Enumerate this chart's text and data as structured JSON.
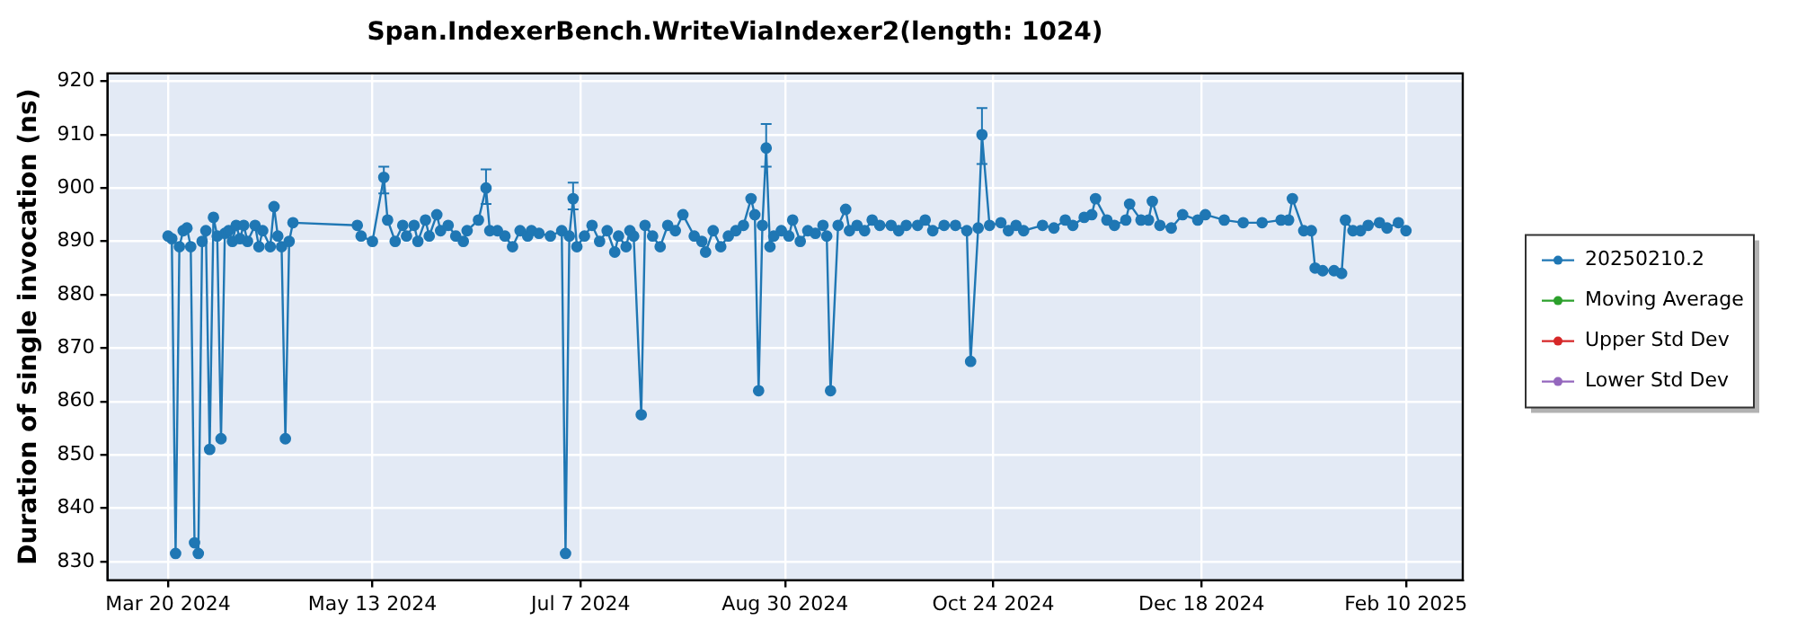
{
  "chart_data": {
    "type": "line",
    "title": "Span.IndexerBench.WriteViaIndexer2(length: 1024)",
    "ylabel": "Duration of single invocation (ns)",
    "xlim": [
      "2024-03-04",
      "2025-02-25"
    ],
    "xticks": [
      {
        "value": "2024-03-20",
        "label": "Mar 20 2024"
      },
      {
        "value": "2024-05-13",
        "label": "May 13 2024"
      },
      {
        "value": "2024-07-07",
        "label": "Jul 7 2024"
      },
      {
        "value": "2024-08-30",
        "label": "Aug 30 2024"
      },
      {
        "value": "2024-10-24",
        "label": "Oct 24 2024"
      },
      {
        "value": "2024-12-18",
        "label": "Dec 18 2024"
      },
      {
        "value": "2025-02-10",
        "label": "Feb 10 2025"
      }
    ],
    "ylim": [
      826.5,
      921.5
    ],
    "yticks": [
      830,
      840,
      850,
      860,
      870,
      880,
      890,
      900,
      910,
      920
    ],
    "grid": true,
    "legend": "right",
    "marker": "circle",
    "line_style": "solid",
    "series": [
      {
        "name": "20250210.2",
        "color": "#1f77b4",
        "x": [
          "2024-03-20",
          "2024-03-21",
          "2024-03-22",
          "2024-03-23",
          "2024-03-24",
          "2024-03-25",
          "2024-03-26",
          "2024-03-27",
          "2024-03-28",
          "2024-03-29",
          "2024-03-30",
          "2024-03-31",
          "2024-04-01",
          "2024-04-02",
          "2024-04-03",
          "2024-04-04",
          "2024-04-05",
          "2024-04-06",
          "2024-04-07",
          "2024-04-08",
          "2024-04-09",
          "2024-04-10",
          "2024-04-12",
          "2024-04-13",
          "2024-04-14",
          "2024-04-16",
          "2024-04-17",
          "2024-04-18",
          "2024-04-19",
          "2024-04-20",
          "2024-04-21",
          "2024-04-22",
          "2024-05-09",
          "2024-05-10",
          "2024-05-13",
          "2024-05-16",
          "2024-05-17",
          "2024-05-19",
          "2024-05-21",
          "2024-05-22",
          "2024-05-24",
          "2024-05-25",
          "2024-05-27",
          "2024-05-28",
          "2024-05-30",
          "2024-05-31",
          "2024-06-02",
          "2024-06-04",
          "2024-06-06",
          "2024-06-07",
          "2024-06-10",
          "2024-06-12",
          "2024-06-13",
          "2024-06-15",
          "2024-06-17",
          "2024-06-19",
          "2024-06-21",
          "2024-06-23",
          "2024-06-24",
          "2024-06-26",
          "2024-06-29",
          "2024-07-02",
          "2024-07-03",
          "2024-07-04",
          "2024-07-05",
          "2024-07-06",
          "2024-07-08",
          "2024-07-10",
          "2024-07-12",
          "2024-07-14",
          "2024-07-16",
          "2024-07-17",
          "2024-07-19",
          "2024-07-20",
          "2024-07-21",
          "2024-07-23",
          "2024-07-24",
          "2024-07-26",
          "2024-07-28",
          "2024-07-30",
          "2024-08-01",
          "2024-08-03",
          "2024-08-06",
          "2024-08-08",
          "2024-08-09",
          "2024-08-11",
          "2024-08-13",
          "2024-08-15",
          "2024-08-17",
          "2024-08-19",
          "2024-08-21",
          "2024-08-22",
          "2024-08-23",
          "2024-08-24",
          "2024-08-25",
          "2024-08-26",
          "2024-08-27",
          "2024-08-29",
          "2024-08-31",
          "2024-09-01",
          "2024-09-03",
          "2024-09-05",
          "2024-09-07",
          "2024-09-09",
          "2024-09-10",
          "2024-09-11",
          "2024-09-13",
          "2024-09-15",
          "2024-09-16",
          "2024-09-18",
          "2024-09-20",
          "2024-09-22",
          "2024-09-24",
          "2024-09-27",
          "2024-09-29",
          "2024-10-01",
          "2024-10-04",
          "2024-10-06",
          "2024-10-08",
          "2024-10-11",
          "2024-10-14",
          "2024-10-17",
          "2024-10-18",
          "2024-10-20",
          "2024-10-21",
          "2024-10-23",
          "2024-10-26",
          "2024-10-28",
          "2024-10-30",
          "2024-11-01",
          "2024-11-06",
          "2024-11-09",
          "2024-11-12",
          "2024-11-14",
          "2024-11-17",
          "2024-11-19",
          "2024-11-20",
          "2024-11-23",
          "2024-11-25",
          "2024-11-28",
          "2024-11-29",
          "2024-12-02",
          "2024-12-04",
          "2024-12-05",
          "2024-12-07",
          "2024-12-10",
          "2024-12-13",
          "2024-12-17",
          "2024-12-19",
          "2024-12-24",
          "2024-12-29",
          "2025-01-03",
          "2025-01-08",
          "2025-01-10",
          "2025-01-11",
          "2025-01-14",
          "2025-01-16",
          "2025-01-17",
          "2025-01-19",
          "2025-01-22",
          "2025-01-24",
          "2025-01-25",
          "2025-01-27",
          "2025-01-29",
          "2025-01-31",
          "2025-02-03",
          "2025-02-05",
          "2025-02-08",
          "2025-02-10"
        ],
        "values": [
          891,
          890.5,
          831.5,
          889,
          892,
          892.5,
          889,
          833.5,
          831.5,
          890,
          892,
          851,
          894.5,
          891,
          853,
          891.5,
          892,
          890,
          893,
          890.5,
          893,
          890,
          893,
          889,
          892,
          889,
          896.5,
          891,
          889,
          853,
          890,
          893.5,
          893,
          891,
          890,
          902,
          894,
          890,
          893,
          891,
          893,
          890,
          894,
          891,
          895,
          892,
          893,
          891,
          890,
          892,
          894,
          900,
          892,
          892,
          891,
          889,
          892,
          891,
          892,
          891.5,
          891,
          892,
          831.5,
          891,
          898,
          889,
          891,
          893,
          890,
          892,
          888,
          891,
          889,
          892,
          891,
          857.5,
          893,
          891,
          889,
          893,
          892,
          895,
          891,
          890,
          888,
          892,
          889,
          891,
          892,
          893,
          898,
          895,
          862,
          893,
          907.5,
          889,
          891,
          892,
          891,
          894,
          890,
          892,
          891.5,
          893,
          891,
          862,
          893,
          896,
          892,
          893,
          892,
          894,
          893,
          893,
          892,
          893,
          893,
          894,
          892,
          893,
          893,
          892,
          867.5,
          892.5,
          910,
          893,
          893.5,
          892,
          893,
          892,
          893,
          892.5,
          894,
          893,
          894.5,
          895,
          898,
          894,
          893,
          894,
          897,
          894,
          894,
          897.5,
          893,
          892.5,
          895,
          894,
          895,
          894,
          893.5,
          893.5,
          894,
          894,
          898,
          892,
          892,
          885,
          884.5,
          884.5,
          884,
          894,
          892,
          892,
          893,
          893.5,
          892.5,
          893.5,
          892
        ],
        "errors": [
          null,
          null,
          null,
          null,
          null,
          null,
          null,
          null,
          null,
          null,
          null,
          null,
          null,
          null,
          null,
          null,
          null,
          null,
          null,
          null,
          null,
          null,
          null,
          null,
          null,
          null,
          null,
          null,
          null,
          null,
          null,
          null,
          null,
          null,
          null,
          [
            899,
            904
          ],
          null,
          null,
          null,
          null,
          null,
          null,
          null,
          null,
          null,
          null,
          null,
          null,
          null,
          null,
          null,
          [
            897,
            903.5
          ],
          null,
          null,
          null,
          null,
          null,
          null,
          null,
          null,
          null,
          null,
          null,
          null,
          [
            896,
            901
          ],
          null,
          null,
          null,
          null,
          null,
          null,
          null,
          null,
          null,
          null,
          null,
          null,
          null,
          null,
          null,
          null,
          null,
          null,
          null,
          null,
          null,
          null,
          null,
          null,
          null,
          null,
          null,
          null,
          null,
          [
            904,
            912
          ],
          null,
          null,
          null,
          null,
          null,
          null,
          null,
          null,
          null,
          null,
          null,
          null,
          null,
          null,
          null,
          null,
          null,
          null,
          null,
          null,
          null,
          null,
          null,
          null,
          null,
          null,
          null,
          null,
          null,
          [
            904.5,
            915
          ],
          null,
          null,
          null,
          null,
          null,
          null,
          null,
          null,
          null,
          null,
          null,
          null,
          null,
          null,
          null,
          null,
          null,
          null,
          null,
          null,
          null,
          null,
          null,
          null,
          null,
          null,
          null,
          null,
          null,
          null,
          null,
          null,
          null,
          null,
          null,
          null,
          null,
          null,
          null,
          null,
          null,
          null,
          null,
          null
        ]
      },
      {
        "name": "Moving Average",
        "color": "#2ca02c"
      },
      {
        "name": "Upper Std Dev",
        "color": "#d62728"
      },
      {
        "name": "Lower Std Dev",
        "color": "#9467bd"
      }
    ]
  }
}
